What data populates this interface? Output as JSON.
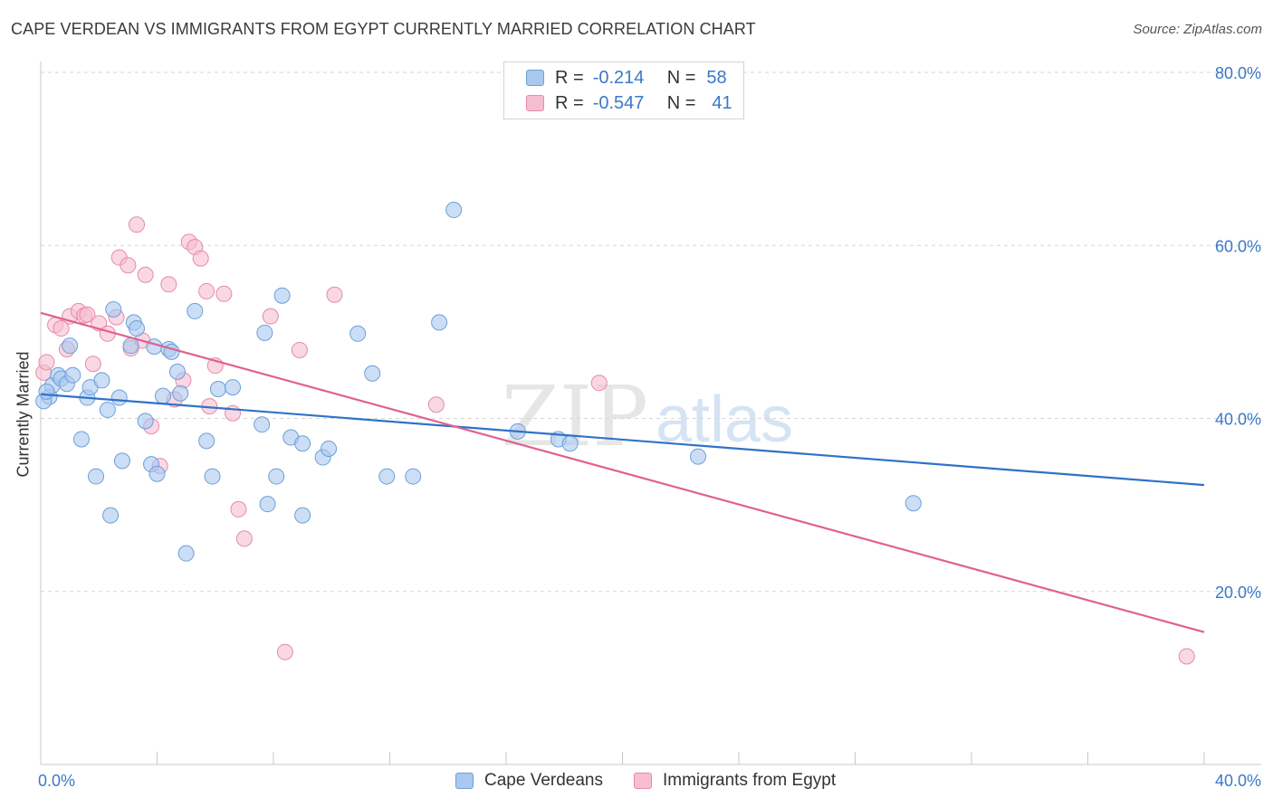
{
  "title": "CAPE VERDEAN VS IMMIGRANTS FROM EGYPT CURRENTLY MARRIED CORRELATION CHART",
  "source": "Source: ZipAtlas.com",
  "watermark": {
    "zip": "ZIP",
    "atlas": "atlas"
  },
  "stats": {
    "row1": {
      "r_label": "R =",
      "r_value": "-0.214",
      "n_label": "N =",
      "n_value": "58"
    },
    "row2": {
      "r_label": "R =",
      "r_value": "-0.547",
      "n_label": "N =",
      "n_value": "41"
    }
  },
  "legend": {
    "series1": "Cape Verdeans",
    "series2": "Immigrants from Egypt"
  },
  "colors": {
    "blue_fill": "#a9c8f0",
    "blue_stroke": "#6d9fd8",
    "blue_line": "#2f72c9",
    "pink_fill": "#f6bed0",
    "pink_stroke": "#e68aa8",
    "pink_line": "#e0608e",
    "grid": "#d6d6d6",
    "axis_text": "#3a78c9"
  },
  "chart_data": {
    "type": "scatter",
    "title": "CAPE VERDEAN VS IMMIGRANTS FROM EGYPT CURRENTLY MARRIED CORRELATION CHART",
    "xlabel": "",
    "ylabel": "Currently Married",
    "xlim": [
      0,
      40
    ],
    "ylim": [
      0,
      80
    ],
    "x_tick_labels": [
      "0.0%",
      "40.0%"
    ],
    "y_ticks": [
      20,
      40,
      60,
      80
    ],
    "y_tick_labels": [
      "20.0%",
      "40.0%",
      "60.0%",
      "80.0%"
    ],
    "grid": true,
    "legend_position": "bottom-center",
    "series": [
      {
        "name": "Cape Verdeans",
        "r": -0.214,
        "n": 58,
        "trend": {
          "x": [
            0,
            40
          ],
          "y": [
            42.8,
            32.3
          ]
        },
        "points": [
          [
            0.3,
            42.5
          ],
          [
            0.4,
            43.8
          ],
          [
            0.6,
            45.0
          ],
          [
            0.7,
            44.6
          ],
          [
            0.9,
            44.0
          ],
          [
            1.0,
            48.4
          ],
          [
            1.1,
            45.0
          ],
          [
            1.4,
            37.6
          ],
          [
            1.6,
            42.4
          ],
          [
            1.7,
            43.6
          ],
          [
            1.9,
            33.3
          ],
          [
            2.1,
            44.4
          ],
          [
            2.3,
            41.0
          ],
          [
            2.4,
            28.8
          ],
          [
            2.5,
            52.6
          ],
          [
            2.7,
            42.4
          ],
          [
            2.8,
            35.1
          ],
          [
            3.1,
            48.4
          ],
          [
            3.2,
            51.1
          ],
          [
            3.3,
            50.4
          ],
          [
            3.6,
            39.7
          ],
          [
            3.8,
            34.7
          ],
          [
            3.9,
            48.3
          ],
          [
            4.0,
            33.6
          ],
          [
            4.2,
            42.6
          ],
          [
            4.4,
            48.0
          ],
          [
            4.5,
            47.7
          ],
          [
            4.7,
            45.4
          ],
          [
            4.8,
            42.9
          ],
          [
            5.0,
            24.4
          ],
          [
            5.3,
            52.4
          ],
          [
            5.7,
            37.4
          ],
          [
            5.9,
            33.3
          ],
          [
            6.1,
            43.4
          ],
          [
            6.6,
            43.6
          ],
          [
            7.6,
            39.3
          ],
          [
            7.7,
            49.9
          ],
          [
            7.8,
            30.1
          ],
          [
            8.1,
            33.3
          ],
          [
            8.3,
            54.2
          ],
          [
            8.6,
            37.8
          ],
          [
            9.0,
            37.1
          ],
          [
            9.0,
            28.8
          ],
          [
            9.7,
            35.5
          ],
          [
            9.9,
            36.5
          ],
          [
            10.9,
            49.8
          ],
          [
            11.4,
            45.2
          ],
          [
            11.9,
            33.3
          ],
          [
            12.8,
            33.3
          ],
          [
            13.7,
            51.1
          ],
          [
            14.2,
            64.1
          ],
          [
            16.4,
            38.5
          ],
          [
            17.8,
            37.6
          ],
          [
            18.2,
            37.1
          ],
          [
            22.6,
            35.6
          ],
          [
            30.0,
            30.2
          ],
          [
            0.1,
            42.0
          ],
          [
            0.2,
            43.1
          ]
        ]
      },
      {
        "name": "Immigrants from Egypt",
        "r": -0.547,
        "n": 41,
        "trend": {
          "x": [
            0,
            40
          ],
          "y": [
            52.2,
            15.3
          ]
        },
        "points": [
          [
            0.1,
            45.3
          ],
          [
            0.2,
            46.5
          ],
          [
            0.5,
            50.8
          ],
          [
            0.7,
            50.4
          ],
          [
            0.9,
            48.0
          ],
          [
            1.0,
            51.8
          ],
          [
            1.3,
            52.4
          ],
          [
            1.5,
            51.9
          ],
          [
            1.6,
            52.0
          ],
          [
            1.8,
            46.3
          ],
          [
            2.0,
            51.0
          ],
          [
            2.3,
            49.8
          ],
          [
            2.6,
            51.7
          ],
          [
            2.7,
            58.6
          ],
          [
            3.0,
            57.7
          ],
          [
            3.1,
            48.1
          ],
          [
            3.3,
            62.4
          ],
          [
            3.5,
            49.0
          ],
          [
            3.6,
            56.6
          ],
          [
            3.8,
            39.1
          ],
          [
            4.1,
            34.5
          ],
          [
            4.4,
            55.5
          ],
          [
            4.6,
            42.2
          ],
          [
            4.9,
            44.4
          ],
          [
            5.1,
            60.4
          ],
          [
            5.3,
            59.8
          ],
          [
            5.5,
            58.5
          ],
          [
            5.7,
            54.7
          ],
          [
            5.8,
            41.4
          ],
          [
            6.0,
            46.1
          ],
          [
            6.3,
            54.4
          ],
          [
            6.6,
            40.6
          ],
          [
            6.8,
            29.5
          ],
          [
            7.0,
            26.1
          ],
          [
            7.9,
            51.8
          ],
          [
            8.4,
            13.0
          ],
          [
            8.9,
            47.9
          ],
          [
            10.1,
            54.3
          ],
          [
            13.6,
            41.6
          ],
          [
            19.2,
            44.1
          ],
          [
            39.4,
            12.5
          ]
        ]
      }
    ]
  }
}
